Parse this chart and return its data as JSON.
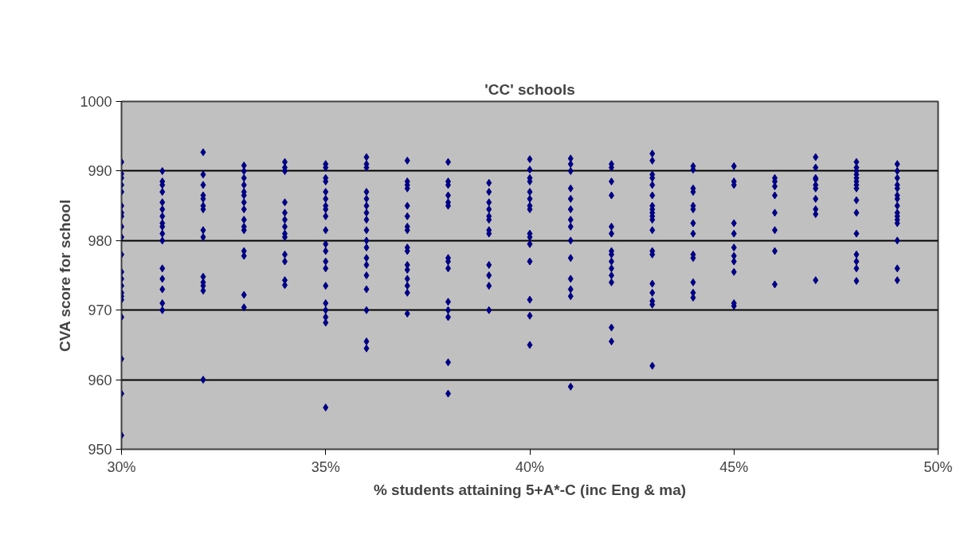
{
  "chart_data": {
    "type": "scatter",
    "title": "'CC' schools",
    "xlabel": "% students attaining 5+A*-C (inc Eng & ma)",
    "ylabel": "CVA score for school",
    "xlim": [
      30,
      50
    ],
    "ylim": [
      950,
      1000
    ],
    "xticks": [
      {
        "value": 30,
        "label": "30%"
      },
      {
        "value": 35,
        "label": "35%"
      },
      {
        "value": 40,
        "label": "40%"
      },
      {
        "value": 45,
        "label": "45%"
      },
      {
        "value": 50,
        "label": "50%"
      }
    ],
    "yticks": [
      950,
      960,
      970,
      980,
      990,
      1000
    ],
    "grid": "y",
    "marker": "diamond",
    "series": [
      {
        "color": "#000080",
        "x": [
          30,
          30,
          30,
          30,
          30,
          30,
          30,
          30,
          30,
          30,
          30,
          30,
          30,
          30,
          30,
          30,
          30,
          30,
          30,
          30,
          30,
          31,
          31,
          31,
          31,
          31,
          31,
          31,
          31,
          31,
          31,
          31,
          31,
          31,
          31,
          31,
          31,
          32,
          32,
          32,
          32,
          32,
          32,
          32,
          32,
          32,
          32,
          32,
          32,
          32,
          32,
          33,
          33,
          33,
          33,
          33,
          33,
          33,
          33,
          33,
          33,
          33,
          33,
          33,
          33,
          33,
          34,
          34,
          34,
          34,
          34,
          34,
          34,
          34,
          34,
          34,
          34,
          34,
          34,
          35,
          35,
          35,
          35,
          35,
          35,
          35,
          35,
          35,
          35,
          35,
          35,
          35,
          35,
          35,
          35,
          35,
          35,
          35,
          35,
          36,
          36,
          36,
          36,
          36,
          36,
          36,
          36,
          36,
          36,
          36,
          36,
          36,
          36,
          36,
          36,
          36,
          36,
          37,
          37,
          37,
          37,
          37,
          37,
          37,
          37,
          37,
          37,
          37,
          37,
          37,
          37,
          37,
          37,
          38,
          38,
          38,
          38,
          38,
          38,
          38,
          38,
          38,
          38,
          38,
          38,
          38,
          38,
          39,
          39,
          39,
          39,
          39,
          39,
          39,
          39,
          39,
          39,
          39,
          39,
          40,
          40,
          40,
          40,
          40,
          40,
          40,
          40,
          40,
          40,
          40,
          40,
          40,
          40,
          40,
          41,
          41,
          41,
          41,
          41,
          41,
          41,
          41,
          41,
          41,
          41,
          41,
          41,
          41,
          42,
          42,
          42,
          42,
          42,
          42,
          42,
          42,
          42,
          42,
          42,
          42,
          42,
          42,
          43,
          43,
          43,
          43,
          43,
          43,
          43,
          43,
          43,
          43,
          43,
          43,
          43,
          43,
          43,
          43,
          43,
          43,
          43,
          44,
          44,
          44,
          44,
          44,
          44,
          44,
          44,
          44,
          44,
          44,
          44,
          44,
          45,
          45,
          45,
          45,
          45,
          45,
          45,
          45,
          45,
          45,
          45,
          46,
          46,
          46,
          46,
          46,
          46,
          46,
          46,
          47,
          47,
          47,
          47,
          47,
          47,
          47,
          47,
          47,
          47,
          48,
          48,
          48,
          48,
          48,
          48,
          48,
          48,
          48,
          48,
          48,
          48,
          48,
          48,
          48,
          49,
          49,
          49,
          49,
          49,
          49,
          49,
          49,
          49,
          49,
          49,
          49,
          49,
          49,
          49
        ],
        "values": [
          991.3,
          989.6,
          989,
          988,
          987,
          985,
          984,
          983.5,
          982,
          980.5,
          978,
          975.5,
          974.5,
          973.5,
          972.5,
          972,
          971.5,
          969,
          963,
          958,
          952,
          990,
          988.5,
          988,
          987,
          985.5,
          984.5,
          983.5,
          982.5,
          982,
          981,
          980,
          976,
          974.5,
          973,
          971,
          970,
          992.7,
          989.5,
          988,
          986.5,
          986,
          985,
          984.5,
          981.5,
          980.5,
          974.8,
          974,
          973.5,
          972.8,
          960,
          990.8,
          990,
          989,
          988,
          987,
          986.5,
          985.5,
          984.5,
          983,
          982,
          981.5,
          978.5,
          977.8,
          972.2,
          970.4,
          991.3,
          990.5,
          990,
          985.5,
          984,
          983,
          982,
          981,
          980.5,
          978,
          977,
          974.3,
          973.6,
          991,
          990.5,
          989,
          988.5,
          987,
          986,
          985,
          984.5,
          983.5,
          981.5,
          979.5,
          978.5,
          977,
          976,
          973.5,
          971,
          970,
          969,
          968.2,
          956,
          992,
          991,
          990.5,
          987,
          986,
          985,
          984,
          983,
          981.5,
          980,
          979,
          977.5,
          976.5,
          975,
          973,
          970,
          965.5,
          964.5,
          991.5,
          988.5,
          988,
          987.5,
          985,
          983.5,
          982,
          981.5,
          979,
          978.5,
          976.5,
          975.8,
          974.5,
          973.5,
          972.5,
          969.5,
          991.3,
          988.5,
          988,
          986.5,
          985.5,
          985,
          977.5,
          977,
          976,
          971.2,
          970,
          969,
          962.5,
          958,
          988.3,
          987,
          985.5,
          984.5,
          983.5,
          983,
          981.5,
          981,
          976.5,
          975,
          973.5,
          970,
          991.7,
          990.2,
          989,
          988.5,
          987,
          986,
          985,
          984.5,
          981,
          980.5,
          979.5,
          977,
          971.5,
          969.2,
          965,
          991.8,
          991,
          990,
          987.5,
          986,
          984.5,
          983,
          982,
          980,
          977.5,
          974.5,
          973,
          972,
          959,
          991,
          990.5,
          988.5,
          986.5,
          982,
          981,
          978.5,
          978,
          977,
          976,
          975,
          974,
          967.5,
          965.5,
          992.5,
          991.5,
          989.5,
          989,
          988,
          986.5,
          985,
          984.5,
          984,
          983.5,
          983,
          981.5,
          978.5,
          978,
          973.8,
          972.5,
          971.3,
          970.8,
          962,
          990.7,
          990.2,
          987.5,
          987,
          985,
          984.5,
          982.5,
          981,
          978,
          977.5,
          974,
          972.5,
          971.8,
          990.7,
          988.5,
          988,
          982.5,
          981,
          979,
          977.8,
          977,
          975.5,
          971,
          970.6,
          989,
          988.5,
          987.8,
          986.5,
          984,
          981.5,
          978.5,
          973.7,
          992,
          990.5,
          989,
          988.8,
          988,
          987.5,
          986,
          984.5,
          983.8,
          974.3,
          991.3,
          990.5,
          990,
          989.5,
          989,
          988.5,
          988,
          987.5,
          985.8,
          984,
          981,
          978,
          977,
          976,
          974.2,
          991,
          990,
          989,
          988,
          987.5,
          986.5,
          986,
          985,
          984,
          983.5,
          983,
          982.5,
          980,
          976,
          974.3
        ]
      }
    ]
  }
}
